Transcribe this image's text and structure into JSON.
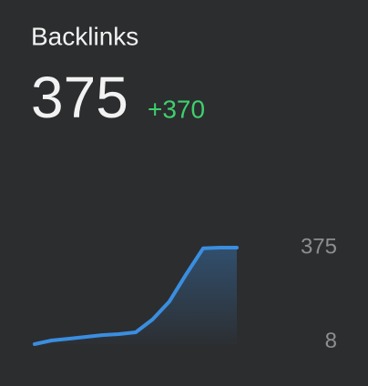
{
  "chart_data": {
    "type": "area",
    "title": "Backlinks",
    "value": 375,
    "change": "+370",
    "categories": [
      null,
      null,
      null,
      null,
      null,
      null,
      null,
      null,
      null,
      null,
      null,
      null,
      null
    ],
    "series": [
      {
        "color": "#3a8ee0",
        "values": [
          0,
          14,
          21,
          28,
          35,
          39,
          46,
          96,
          166,
          272,
          372,
          375,
          375
        ]
      }
    ],
    "ylim": [
      0,
      375
    ],
    "yticks": [
      8,
      375
    ],
    "grid": false
  }
}
